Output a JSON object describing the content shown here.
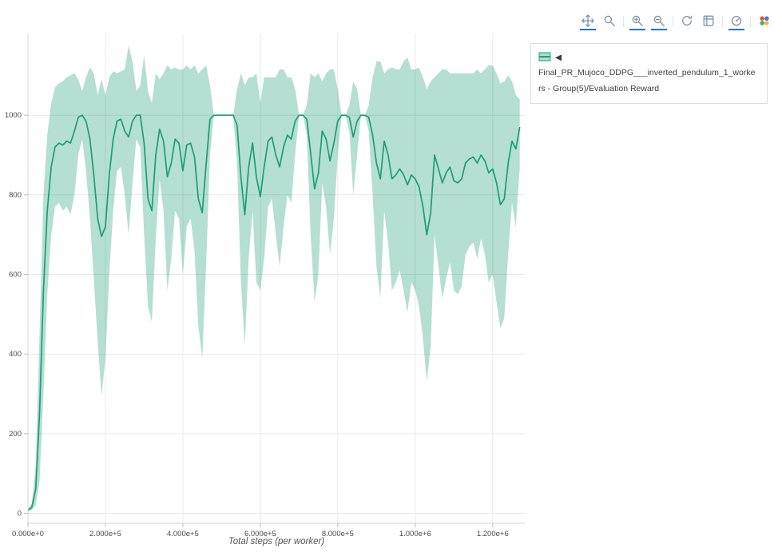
{
  "modebar": {
    "accent_color": "#1a73e8",
    "icon_color": "#7f96ad",
    "buttons": [
      {
        "name": "pan",
        "icon": "pan-icon",
        "active": true
      },
      {
        "name": "zoom",
        "icon": "zoom-icon",
        "active": false
      },
      {
        "name": "zoom-in",
        "icon": "zoom-in-icon",
        "active": true
      },
      {
        "name": "zoom-out",
        "icon": "zoom-out-icon",
        "active": true
      },
      {
        "name": "autoscale",
        "icon": "autoscale-icon",
        "active": false
      },
      {
        "name": "reset-axes",
        "icon": "reset-axes-icon",
        "active": false
      },
      {
        "name": "hover-closest",
        "icon": "hover-closest-icon",
        "active": true
      },
      {
        "name": "plotly-logo",
        "icon": "plotly-logo-icon",
        "active": false
      }
    ]
  },
  "legend": {
    "line1": "◀ Final_PR_Mujoco_DDPG___inverted_pendulum_1_worke",
    "line2": "rs - Group(5)/Evaluation Reward"
  },
  "chart_data": {
    "type": "line",
    "title": "",
    "xlabel": "Total steps (per worker)",
    "ylabel": "",
    "xlim": [
      0,
      1283000
    ],
    "ylim": [
      -25,
      1205
    ],
    "layout": {
      "grid": true,
      "legend_position": "top-right-outside",
      "background": "#ffffff",
      "grid_color": "#e9e9e9"
    },
    "x_ticks": {
      "values": [
        0,
        200000,
        400000,
        600000,
        800000,
        1000000,
        1200000
      ],
      "labels": [
        "0.000e+0",
        "2.000e+5",
        "4.000e+5",
        "6.000e+5",
        "8.000e+5",
        "1.000e+6",
        "1.200e+6"
      ]
    },
    "y_ticks": {
      "values": [
        0,
        200,
        400,
        600,
        800,
        1000
      ],
      "labels": [
        "0",
        "200",
        "400",
        "600",
        "800",
        "1000"
      ]
    },
    "series": [
      {
        "name": "◀ Final_PR_Mujoco_DDPG___inverted_pendulum_1_workers - Group(5)/Evaluation Reward",
        "color": "#1b9e77",
        "band_opacity": 0.33,
        "x_step": 10000,
        "mean": [
          8,
          15,
          60,
          250,
          560,
          760,
          870,
          920,
          930,
          925,
          935,
          930,
          960,
          995,
          1000,
          985,
          940,
          850,
          740,
          695,
          720,
          850,
          940,
          985,
          990,
          960,
          945,
          985,
          1000,
          1000,
          930,
          790,
          760,
          900,
          965,
          935,
          845,
          880,
          940,
          930,
          860,
          925,
          930,
          895,
          790,
          755,
          875,
          990,
          1000,
          1000,
          1000,
          1000,
          1000,
          1000,
          975,
          845,
          750,
          870,
          930,
          845,
          795,
          870,
          935,
          945,
          900,
          870,
          920,
          950,
          940,
          985,
          1000,
          1000,
          990,
          905,
          815,
          855,
          960,
          940,
          885,
          930,
          985,
          1000,
          1000,
          995,
          945,
          985,
          1000,
          1000,
          995,
          950,
          880,
          840,
          935,
          900,
          840,
          850,
          865,
          850,
          825,
          850,
          840,
          820,
          770,
          700,
          755,
          900,
          865,
          830,
          855,
          870,
          835,
          830,
          840,
          880,
          890,
          895,
          880,
          900,
          885,
          855,
          865,
          830,
          775,
          790,
          880,
          935,
          915,
          970
        ],
        "lower": [
          5,
          8,
          20,
          80,
          300,
          550,
          700,
          770,
          780,
          760,
          770,
          750,
          800,
          900,
          940,
          860,
          740,
          590,
          430,
          295,
          390,
          600,
          760,
          860,
          870,
          800,
          700,
          830,
          940,
          920,
          700,
          520,
          480,
          690,
          840,
          760,
          560,
          640,
          760,
          740,
          600,
          720,
          740,
          660,
          470,
          390,
          620,
          900,
          1000,
          1000,
          1000,
          1000,
          1000,
          1000,
          880,
          580,
          420,
          640,
          760,
          580,
          560,
          640,
          770,
          790,
          700,
          620,
          720,
          800,
          780,
          900,
          1000,
          1000,
          950,
          700,
          530,
          600,
          830,
          770,
          650,
          740,
          900,
          1000,
          1000,
          960,
          800,
          900,
          1000,
          1000,
          960,
          800,
          620,
          540,
          760,
          680,
          560,
          580,
          610,
          560,
          505,
          580,
          560,
          520,
          440,
          330,
          420,
          700,
          620,
          540,
          590,
          630,
          560,
          550,
          570,
          650,
          670,
          680,
          640,
          690,
          650,
          580,
          600,
          530,
          465,
          490,
          650,
          780,
          720,
          870
        ],
        "upper": [
          12,
          25,
          120,
          450,
          800,
          950,
          1030,
          1070,
          1080,
          1085,
          1095,
          1100,
          1105,
          1090,
          1060,
          1095,
          1120,
          1105,
          1050,
          1090,
          1050,
          1095,
          1110,
          1105,
          1110,
          1115,
          1175,
          1135,
          1060,
          1075,
          1150,
          1060,
          1030,
          1105,
          1090,
          1105,
          1125,
          1115,
          1120,
          1115,
          1115,
          1125,
          1115,
          1125,
          1105,
          1115,
          1125,
          1075,
          1000,
          1000,
          1000,
          1000,
          1000,
          1000,
          1065,
          1105,
          1075,
          1095,
          1095,
          1105,
          1030,
          1095,
          1095,
          1095,
          1095,
          1115,
          1115,
          1095,
          1095,
          1065,
          1000,
          1000,
          1025,
          1105,
          1095,
          1105,
          1085,
          1105,
          1115,
          1115,
          1065,
          1000,
          1000,
          1025,
          1085,
          1065,
          1000,
          1000,
          1025,
          1095,
          1135,
          1135,
          1105,
          1115,
          1120,
          1115,
          1115,
          1135,
          1145,
          1115,
          1115,
          1120,
          1095,
          1065,
          1085,
          1095,
          1105,
          1115,
          1115,
          1105,
          1105,
          1105,
          1105,
          1105,
          1105,
          1105,
          1115,
          1105,
          1115,
          1125,
          1125,
          1105,
          1080,
          1085,
          1100,
          1085,
          1050,
          1040
        ]
      }
    ]
  }
}
